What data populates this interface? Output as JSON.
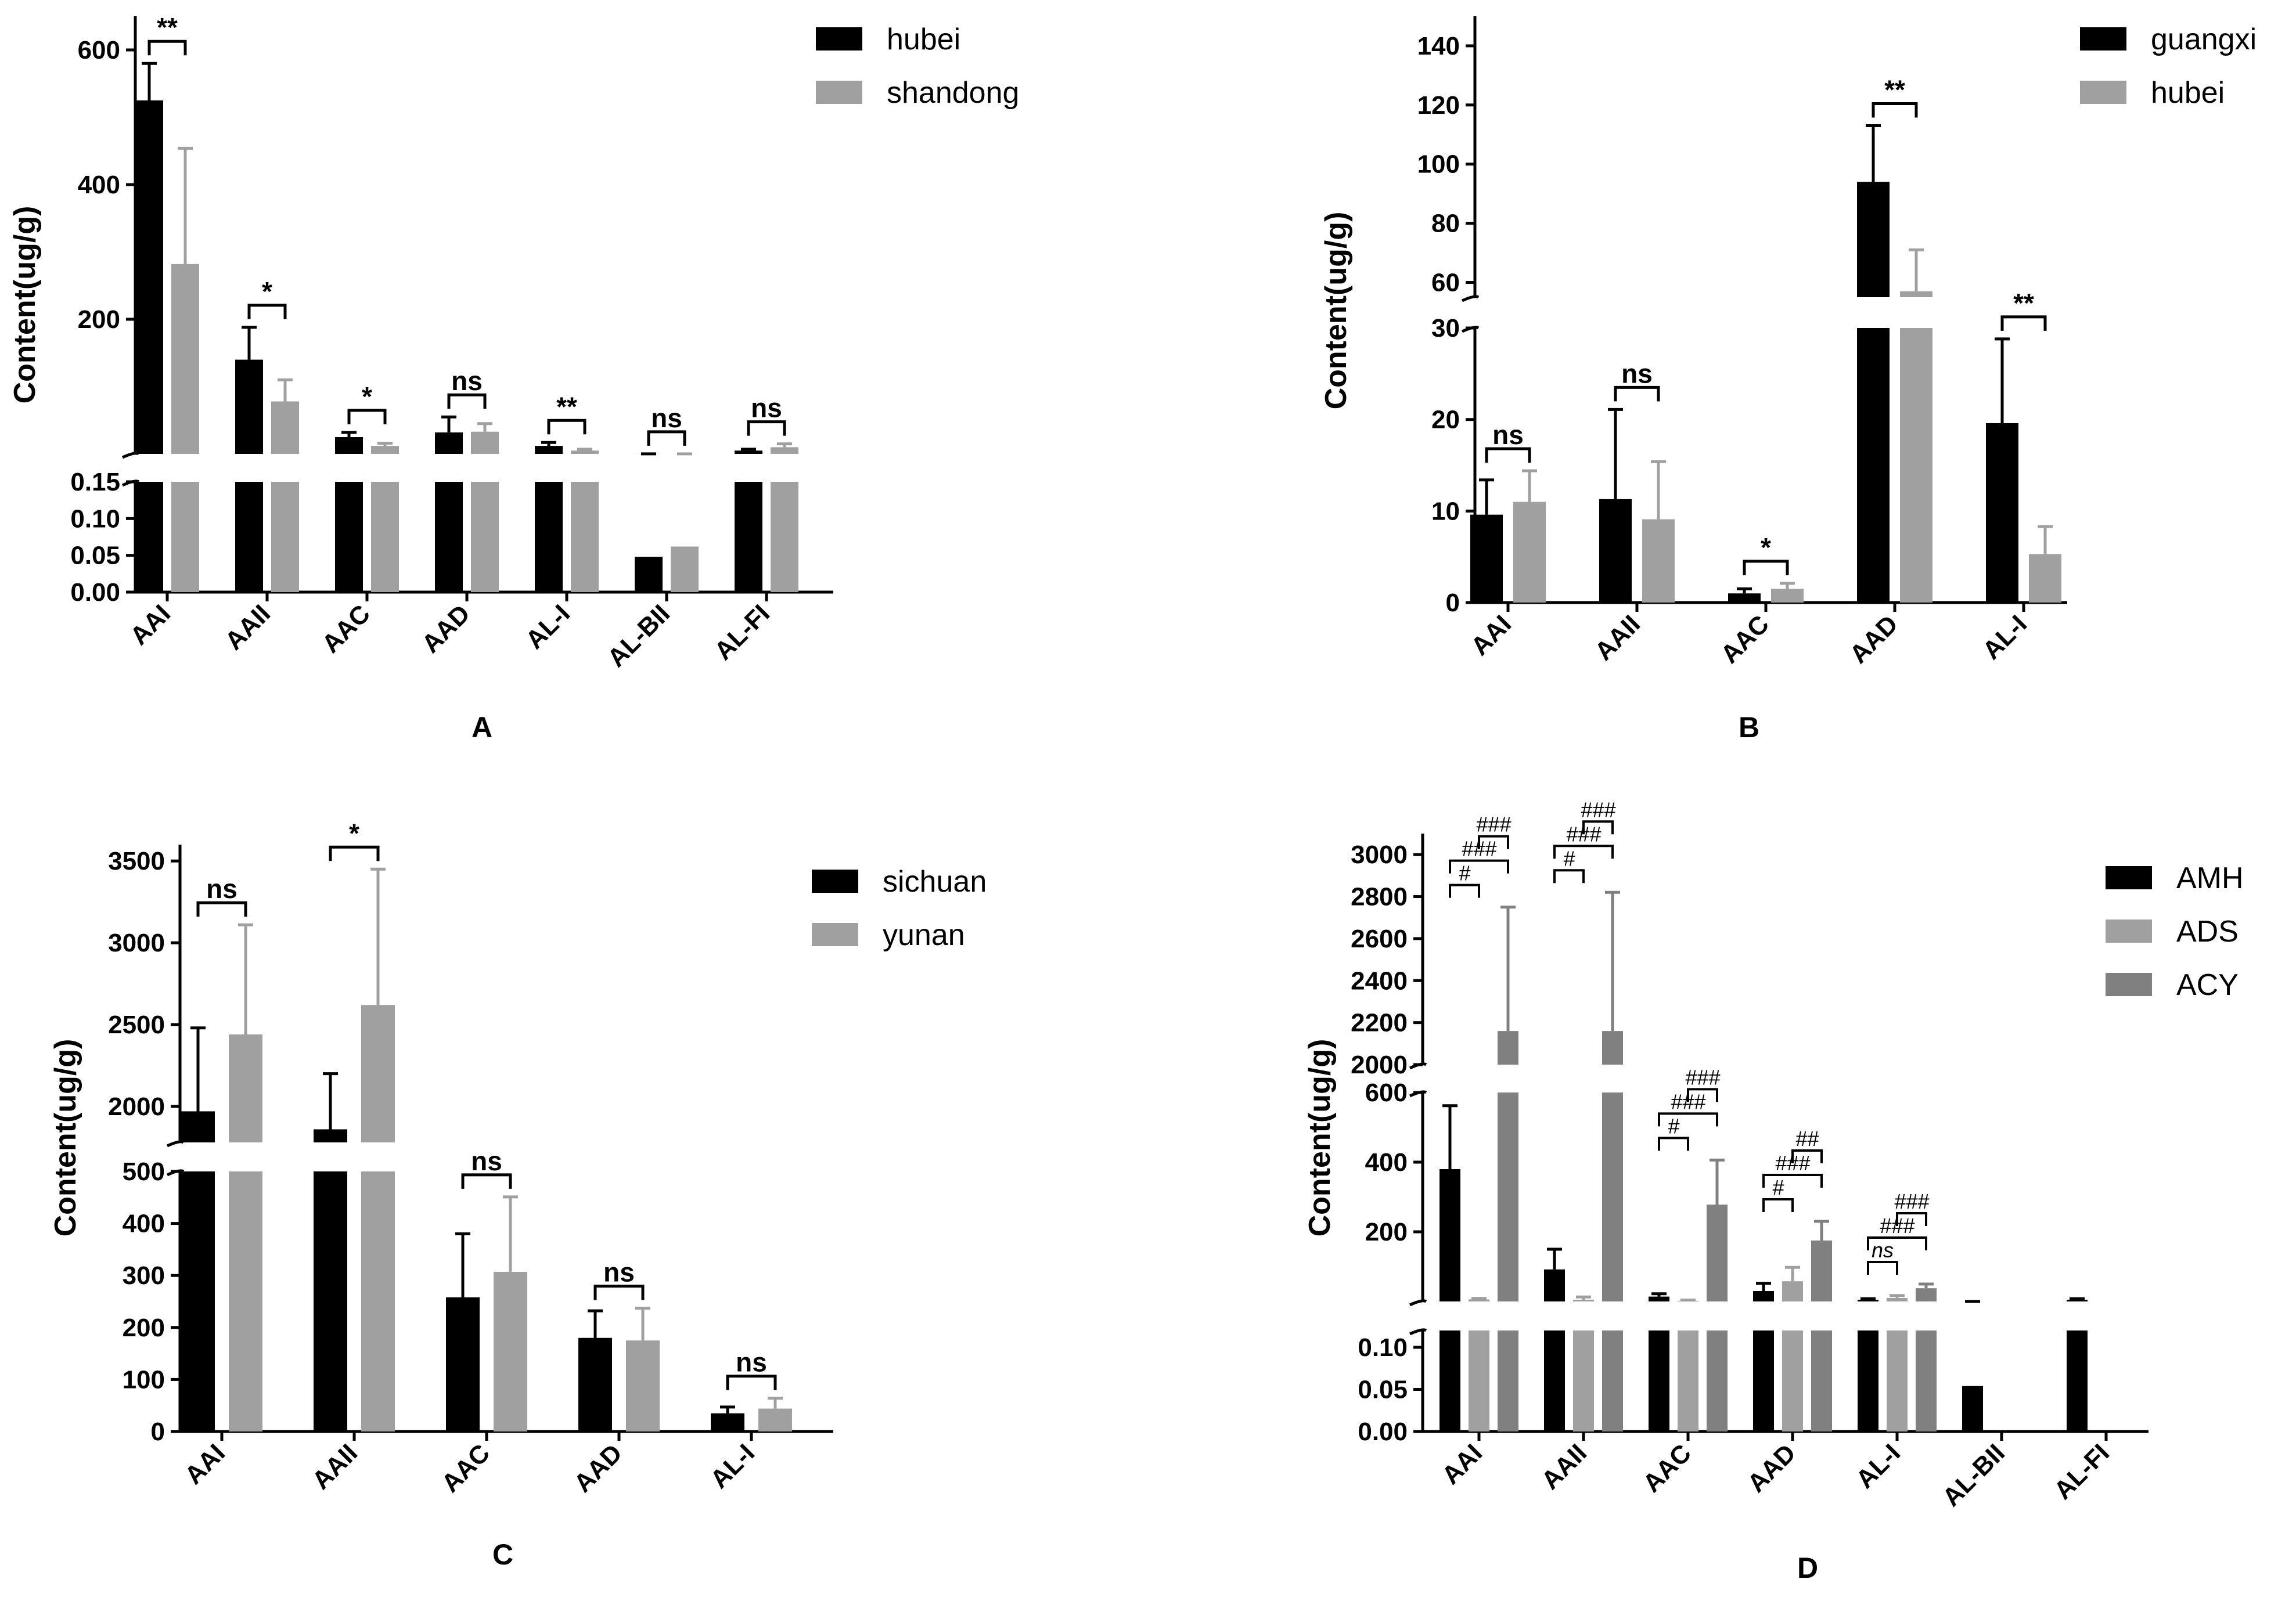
{
  "figure": {
    "panels": [
      "A",
      "B",
      "C",
      "D"
    ]
  },
  "chart_data": [
    {
      "id": "A",
      "type": "bar",
      "panel_label": "A",
      "title": "",
      "xlabel": "",
      "ylabel": "Content(ug/g)",
      "categories": [
        "AAI",
        "AAII",
        "AAC",
        "AAD",
        "AL-I",
        "AL-BII",
        "AL-FI"
      ],
      "series": [
        {
          "name": "hubei",
          "color": "#000000",
          "values": [
            525,
            140,
            25,
            32,
            12,
            0.048,
            5
          ],
          "errors": [
            55,
            48,
            7,
            23,
            5,
            0.028,
            2
          ]
        },
        {
          "name": "shandong",
          "color": "#a0a0a0",
          "values": [
            282,
            78,
            12,
            33,
            5,
            0.062,
            10
          ],
          "errors": [
            172,
            32,
            4,
            12,
            2,
            0.072,
            5
          ]
        }
      ],
      "y_segments": [
        {
          "range": [
            0,
            0.15
          ],
          "ticks": [
            0,
            0.05,
            0.1,
            0.15
          ],
          "tick_labels": [
            "0.00",
            "0.05",
            "0.10",
            "0.15"
          ]
        },
        {
          "range": [
            0,
            650
          ],
          "ticks": [
            200,
            400,
            600
          ],
          "tick_labels": [
            "200",
            "400",
            "600"
          ]
        }
      ],
      "significance": [
        {
          "label": "**",
          "category": 0
        },
        {
          "label": "*",
          "category": 1
        },
        {
          "label": "*",
          "category": 2
        },
        {
          "label": "ns",
          "category": 3
        },
        {
          "label": "**",
          "category": 4
        },
        {
          "label": "ns",
          "category": 5
        },
        {
          "label": "ns",
          "category": 6
        }
      ]
    },
    {
      "id": "B",
      "type": "bar",
      "panel_label": "B",
      "title": "",
      "xlabel": "",
      "ylabel": "Content(ug/g)",
      "categories": [
        "AAI",
        "AAII",
        "AAC",
        "AAD",
        "AL-I"
      ],
      "series": [
        {
          "name": "guangxi",
          "color": "#000000",
          "values": [
            9.6,
            11.3,
            1.0,
            94,
            19.6
          ],
          "errors": [
            3.8,
            9.8,
            0.5,
            19,
            9.2
          ]
        },
        {
          "name": "hubei",
          "color": "#a0a0a0",
          "values": [
            11.0,
            9.1,
            1.5,
            57,
            5.3
          ],
          "errors": [
            3.4,
            6.3,
            0.6,
            14,
            3.0
          ]
        }
      ],
      "y_segments": [
        {
          "range": [
            0,
            30
          ],
          "ticks": [
            0,
            10,
            20,
            30
          ],
          "tick_labels": [
            "0",
            "10",
            "20",
            "30"
          ]
        },
        {
          "range": [
            55,
            150
          ],
          "ticks": [
            60,
            80,
            100,
            120,
            140
          ],
          "tick_labels": [
            "60",
            "80",
            "100",
            "120",
            "140"
          ]
        }
      ],
      "significance": [
        {
          "label": "ns",
          "category": 0
        },
        {
          "label": "ns",
          "category": 1
        },
        {
          "label": "*",
          "category": 2
        },
        {
          "label": "**",
          "category": 3
        },
        {
          "label": "**",
          "category": 4
        }
      ]
    },
    {
      "id": "C",
      "type": "bar",
      "panel_label": "C",
      "title": "",
      "xlabel": "",
      "ylabel": "Content(ug/g)",
      "categories": [
        "AAI",
        "AAII",
        "AAC",
        "AAD",
        "AL-I"
      ],
      "series": [
        {
          "name": "sichuan",
          "color": "#000000",
          "values": [
            1970,
            1860,
            258,
            180,
            35
          ],
          "errors": [
            510,
            340,
            122,
            52,
            12
          ]
        },
        {
          "name": "yunan",
          "color": "#a0a0a0",
          "values": [
            2440,
            2620,
            307,
            175,
            44
          ],
          "errors": [
            670,
            830,
            144,
            62,
            20
          ]
        }
      ],
      "y_segments": [
        {
          "range": [
            0,
            500
          ],
          "ticks": [
            0,
            100,
            200,
            300,
            400,
            500
          ],
          "tick_labels": [
            "0",
            "100",
            "200",
            "300",
            "400",
            "500"
          ]
        },
        {
          "range": [
            1780,
            3600
          ],
          "ticks": [
            2000,
            2500,
            3000,
            3500
          ],
          "tick_labels": [
            "2000",
            "2500",
            "3000",
            "3500"
          ]
        }
      ],
      "significance": [
        {
          "label": "ns",
          "category": 0
        },
        {
          "label": "*",
          "category": 1
        },
        {
          "label": "ns",
          "category": 2
        },
        {
          "label": "ns",
          "category": 3
        },
        {
          "label": "ns",
          "category": 4
        }
      ]
    },
    {
      "id": "D",
      "type": "bar",
      "panel_label": "D",
      "title": "",
      "xlabel": "",
      "ylabel": "Content(ug/g)",
      "categories": [
        "AAI",
        "AAII",
        "AAC",
        "AAD",
        "AL-I",
        "AL-BII",
        "AL-FI"
      ],
      "series": [
        {
          "name": "AMH",
          "color": "#000000",
          "values": [
            380,
            92,
            14,
            30,
            5,
            0.054,
            5
          ],
          "errors": [
            182,
            58,
            8,
            22,
            3,
            0.05,
            3
          ]
        },
        {
          "name": "ADS",
          "color": "#a0a0a0",
          "values": [
            6,
            5,
            2,
            58,
            10,
            null,
            null
          ],
          "errors": [
            3,
            8,
            2,
            40,
            7,
            null,
            null
          ]
        },
        {
          "name": "ACY",
          "color": "#808080",
          "values": [
            2160,
            2160,
            278,
            175,
            38,
            null,
            null
          ],
          "errors": [
            590,
            660,
            128,
            55,
            12,
            null,
            null
          ]
        }
      ],
      "y_segments": [
        {
          "range": [
            0,
            0.12
          ],
          "ticks": [
            0,
            0.05,
            0.1
          ],
          "tick_labels": [
            "0.00",
            "0.05",
            "0.10"
          ]
        },
        {
          "range": [
            0,
            600
          ],
          "ticks": [
            200,
            400,
            600
          ],
          "tick_labels": [
            "200",
            "400",
            "600"
          ]
        },
        {
          "range": [
            2000,
            3100
          ],
          "ticks": [
            2000,
            2200,
            2400,
            2600,
            2800,
            3000
          ],
          "tick_labels": [
            "2000",
            "2200",
            "2400",
            "2600",
            "2800",
            "3000"
          ]
        }
      ],
      "significance": [
        {
          "label": "#",
          "category": 0,
          "from": 0,
          "to": 1,
          "level": 0
        },
        {
          "label": "###",
          "category": 0,
          "from": 0,
          "to": 2,
          "level": 1
        },
        {
          "label": "###",
          "category": 0,
          "from": 1,
          "to": 2,
          "level": 2
        },
        {
          "label": "#",
          "category": 1,
          "from": 0,
          "to": 1,
          "level": 0
        },
        {
          "label": "###",
          "category": 1,
          "from": 0,
          "to": 2,
          "level": 1
        },
        {
          "label": "###",
          "category": 1,
          "from": 1,
          "to": 2,
          "level": 2
        },
        {
          "label": "#",
          "category": 2,
          "from": 0,
          "to": 1,
          "level": 0
        },
        {
          "label": "###",
          "category": 2,
          "from": 0,
          "to": 2,
          "level": 1
        },
        {
          "label": "###",
          "category": 2,
          "from": 1,
          "to": 2,
          "level": 2
        },
        {
          "label": "#",
          "category": 3,
          "from": 0,
          "to": 1,
          "level": 0
        },
        {
          "label": "###",
          "category": 3,
          "from": 0,
          "to": 2,
          "level": 1
        },
        {
          "label": "##",
          "category": 3,
          "from": 1,
          "to": 2,
          "level": 2
        },
        {
          "label": "ns",
          "category": 4,
          "from": 0,
          "to": 1,
          "level": 0
        },
        {
          "label": "###",
          "category": 4,
          "from": 0,
          "to": 2,
          "level": 1
        },
        {
          "label": "###",
          "category": 4,
          "from": 1,
          "to": 2,
          "level": 2
        }
      ]
    }
  ]
}
